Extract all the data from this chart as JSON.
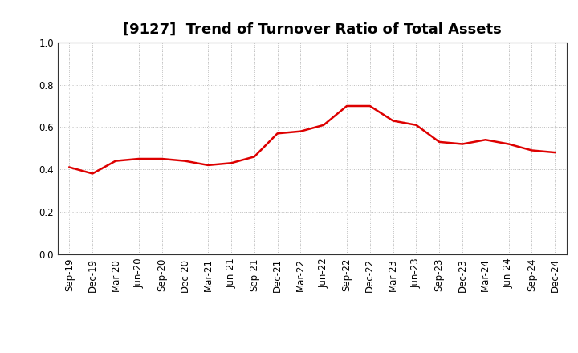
{
  "title": "[9127]  Trend of Turnover Ratio of Total Assets",
  "labels": [
    "Sep-19",
    "Dec-19",
    "Mar-20",
    "Jun-20",
    "Sep-20",
    "Dec-20",
    "Mar-21",
    "Jun-21",
    "Sep-21",
    "Dec-21",
    "Mar-22",
    "Jun-22",
    "Sep-22",
    "Dec-22",
    "Mar-23",
    "Jun-23",
    "Sep-23",
    "Dec-23",
    "Mar-24",
    "Jun-24",
    "Sep-24",
    "Dec-24"
  ],
  "values": [
    0.41,
    0.38,
    0.44,
    0.45,
    0.45,
    0.44,
    0.42,
    0.43,
    0.46,
    0.57,
    0.58,
    0.61,
    0.7,
    0.7,
    0.63,
    0.61,
    0.53,
    0.52,
    0.54,
    0.52,
    0.49,
    0.48
  ],
  "line_color": "#dd0000",
  "line_width": 1.8,
  "ylim": [
    0.0,
    1.0
  ],
  "yticks": [
    0.0,
    0.2,
    0.4,
    0.6,
    0.8,
    1.0
  ],
  "background_color": "#ffffff",
  "grid_color": "#bbbbbb",
  "title_fontsize": 13,
  "tick_fontsize": 8.5,
  "spine_color": "#333333"
}
